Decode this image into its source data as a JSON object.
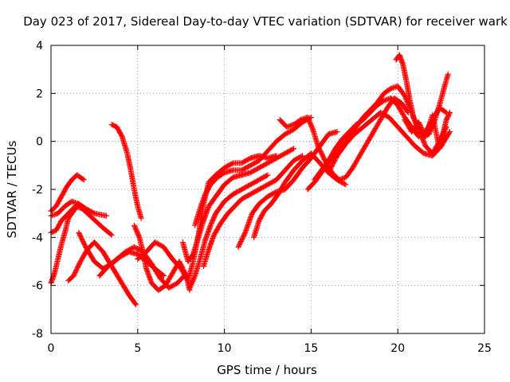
{
  "chart_data": {
    "type": "scatter",
    "title": "Day 023 of 2017, Sidereal Day-to-day VTEC variation (SDTVAR) for receiver wark",
    "xlabel": "GPS time / hours",
    "ylabel": "SDTVAR / TECUs",
    "xlim": [
      0,
      25
    ],
    "ylim": [
      -8,
      4
    ],
    "x_ticks": [
      "0",
      "5",
      "10",
      "15",
      "20",
      "25"
    ],
    "y_ticks": [
      "-8",
      "-6",
      "-4",
      "-2",
      "0",
      "2",
      "4"
    ],
    "grid": true,
    "marker": "+",
    "color": "#ff0000",
    "series": [
      {
        "points": [
          [
            0,
            -2.9
          ],
          [
            0.3,
            -2.7
          ],
          [
            0.6,
            -2.3
          ],
          [
            0.9,
            -1.9
          ],
          [
            1.2,
            -1.6
          ],
          [
            1.5,
            -1.4
          ],
          [
            1.9,
            -1.6
          ]
        ]
      },
      {
        "points": [
          [
            0,
            -3.1
          ],
          [
            0.4,
            -3.0
          ],
          [
            0.8,
            -2.7
          ],
          [
            1.2,
            -2.5
          ],
          [
            1.6,
            -2.6
          ],
          [
            2.0,
            -2.8
          ],
          [
            2.5,
            -3.0
          ],
          [
            3.2,
            -3.1
          ]
        ]
      },
      {
        "points": [
          [
            0,
            -3.8
          ],
          [
            0.3,
            -3.7
          ],
          [
            0.6,
            -3.3
          ],
          [
            1.0,
            -3.0
          ],
          [
            1.4,
            -2.7
          ],
          [
            1.8,
            -2.8
          ],
          [
            2.4,
            -3.2
          ],
          [
            3.0,
            -3.6
          ],
          [
            3.5,
            -3.9
          ]
        ]
      },
      {
        "points": [
          [
            0,
            -5.9
          ],
          [
            0.2,
            -5.5
          ],
          [
            0.4,
            -4.9
          ],
          [
            0.6,
            -4.3
          ],
          [
            0.8,
            -3.8
          ],
          [
            1.0,
            -3.2
          ],
          [
            1.3,
            -2.9
          ],
          [
            1.6,
            -2.6
          ]
        ]
      },
      {
        "points": [
          [
            1.0,
            -5.8
          ],
          [
            1.3,
            -5.6
          ],
          [
            1.7,
            -5.0
          ],
          [
            2.1,
            -4.5
          ],
          [
            2.5,
            -4.2
          ],
          [
            3.0,
            -4.6
          ],
          [
            3.5,
            -5.2
          ],
          [
            4.0,
            -5.8
          ],
          [
            4.5,
            -6.4
          ],
          [
            4.9,
            -6.8
          ]
        ]
      },
      {
        "points": [
          [
            1.6,
            -3.8
          ],
          [
            2.0,
            -4.4
          ],
          [
            2.5,
            -5.0
          ],
          [
            3.0,
            -5.3
          ],
          [
            3.5,
            -5.1
          ],
          [
            4.0,
            -4.8
          ],
          [
            4.5,
            -4.6
          ],
          [
            5.0,
            -4.7
          ],
          [
            5.5,
            -5.0
          ],
          [
            6.0,
            -5.3
          ],
          [
            6.5,
            -5.6
          ]
        ]
      },
      {
        "points": [
          [
            2.8,
            -5.6
          ],
          [
            3.3,
            -5.2
          ],
          [
            3.8,
            -4.9
          ],
          [
            4.3,
            -4.6
          ],
          [
            4.8,
            -4.4
          ],
          [
            5.3,
            -4.6
          ],
          [
            5.8,
            -5.1
          ],
          [
            6.3,
            -5.7
          ],
          [
            6.8,
            -6.1
          ],
          [
            7.3,
            -5.9
          ],
          [
            7.8,
            -5.5
          ]
        ]
      },
      {
        "points": [
          [
            3.5,
            0.7
          ],
          [
            3.8,
            0.6
          ],
          [
            4.1,
            0.2
          ],
          [
            4.4,
            -0.5
          ],
          [
            4.6,
            -1.2
          ],
          [
            4.8,
            -2.0
          ],
          [
            5.0,
            -2.7
          ],
          [
            5.2,
            -3.2
          ]
        ]
      },
      {
        "points": [
          [
            4.8,
            -3.5
          ],
          [
            5.1,
            -4.0
          ],
          [
            5.3,
            -4.6
          ],
          [
            5.5,
            -5.3
          ],
          [
            5.8,
            -5.9
          ],
          [
            6.2,
            -6.2
          ],
          [
            6.6,
            -6.0
          ],
          [
            7.0,
            -5.5
          ],
          [
            7.4,
            -5.0
          ],
          [
            7.8,
            -5.6
          ],
          [
            8.0,
            -6.2
          ]
        ]
      },
      {
        "points": [
          [
            5.0,
            -4.9
          ],
          [
            5.5,
            -4.6
          ],
          [
            6.0,
            -4.2
          ],
          [
            6.5,
            -4.4
          ],
          [
            7.0,
            -4.9
          ],
          [
            7.5,
            -5.3
          ],
          [
            7.9,
            -5.8
          ],
          [
            8.2,
            -5.0
          ],
          [
            8.5,
            -3.9
          ],
          [
            8.8,
            -2.6
          ],
          [
            9.1,
            -1.7
          ],
          [
            9.5,
            -1.4
          ],
          [
            10.0,
            -1.1
          ],
          [
            10.5,
            -0.9
          ],
          [
            11.0,
            -0.9
          ],
          [
            11.5,
            -0.7
          ],
          [
            12.0,
            -0.6
          ],
          [
            12.5,
            -0.7
          ],
          [
            13.0,
            -0.6
          ]
        ]
      },
      {
        "points": [
          [
            7.6,
            -4.2
          ],
          [
            7.9,
            -5.0
          ],
          [
            8.2,
            -4.7
          ],
          [
            8.5,
            -4.0
          ],
          [
            8.8,
            -3.3
          ],
          [
            9.1,
            -2.7
          ],
          [
            9.5,
            -2.3
          ],
          [
            10.0,
            -1.8
          ],
          [
            10.5,
            -1.5
          ],
          [
            11.0,
            -1.4
          ],
          [
            11.5,
            -1.3
          ],
          [
            12.0,
            -1.1
          ],
          [
            12.5,
            -0.9
          ],
          [
            13.0,
            -0.7
          ],
          [
            13.5,
            -0.5
          ],
          [
            14.0,
            -0.3
          ]
        ]
      },
      {
        "points": [
          [
            8.0,
            -6.1
          ],
          [
            8.3,
            -5.6
          ],
          [
            8.6,
            -4.9
          ],
          [
            8.9,
            -4.1
          ],
          [
            9.2,
            -3.5
          ],
          [
            9.5,
            -3.0
          ],
          [
            10.0,
            -2.5
          ],
          [
            10.5,
            -2.2
          ],
          [
            11.0,
            -2.0
          ],
          [
            11.5,
            -1.8
          ],
          [
            12.0,
            -1.6
          ],
          [
            12.5,
            -1.4
          ]
        ]
      },
      {
        "points": [
          [
            8.3,
            -3.5
          ],
          [
            8.6,
            -2.8
          ],
          [
            8.9,
            -2.2
          ],
          [
            9.2,
            -1.8
          ],
          [
            9.6,
            -1.5
          ],
          [
            10.0,
            -1.3
          ],
          [
            10.5,
            -1.2
          ],
          [
            11.0,
            -1.2
          ],
          [
            11.5,
            -1.0
          ],
          [
            12.0,
            -0.8
          ],
          [
            12.5,
            -0.4
          ],
          [
            13.0,
            0.0
          ],
          [
            13.5,
            0.3
          ],
          [
            14.0,
            0.5
          ],
          [
            14.5,
            0.8
          ],
          [
            15.0,
            1.0
          ]
        ]
      },
      {
        "points": [
          [
            8.8,
            -5.2
          ],
          [
            9.1,
            -4.5
          ],
          [
            9.4,
            -3.9
          ],
          [
            9.8,
            -3.4
          ],
          [
            10.2,
            -3.0
          ],
          [
            10.6,
            -2.7
          ],
          [
            11.0,
            -2.4
          ],
          [
            11.5,
            -2.2
          ],
          [
            12.0,
            -2.0
          ],
          [
            12.5,
            -1.8
          ],
          [
            13.0,
            -1.6
          ],
          [
            13.5,
            -1.2
          ],
          [
            14.0,
            -0.8
          ],
          [
            14.5,
            -0.6
          ]
        ]
      },
      {
        "points": [
          [
            10.8,
            -4.4
          ],
          [
            11.2,
            -3.8
          ],
          [
            11.6,
            -3.0
          ],
          [
            12.0,
            -2.6
          ],
          [
            12.5,
            -2.3
          ],
          [
            13.0,
            -2.1
          ],
          [
            13.5,
            -2.0
          ],
          [
            14.0,
            -1.6
          ],
          [
            14.5,
            -1.1
          ],
          [
            15.0,
            -0.7
          ],
          [
            15.5,
            -0.2
          ],
          [
            16.0,
            0.3
          ],
          [
            16.5,
            0.4
          ]
        ]
      },
      {
        "points": [
          [
            11.7,
            -4.0
          ],
          [
            12.0,
            -3.3
          ],
          [
            12.3,
            -2.9
          ],
          [
            12.7,
            -2.6
          ],
          [
            13.1,
            -2.2
          ],
          [
            13.5,
            -1.7
          ],
          [
            14.0,
            -1.2
          ],
          [
            14.5,
            -0.8
          ],
          [
            15.0,
            -0.5
          ],
          [
            15.5,
            -0.9
          ],
          [
            16.0,
            -1.3
          ],
          [
            16.5,
            -1.6
          ],
          [
            17.0,
            -1.8
          ]
        ]
      },
      {
        "points": [
          [
            13.2,
            0.9
          ],
          [
            13.6,
            0.6
          ],
          [
            14.0,
            0.7
          ],
          [
            14.4,
            0.9
          ],
          [
            14.8,
            1.0
          ],
          [
            15.1,
            0.5
          ],
          [
            15.4,
            -0.2
          ],
          [
            15.8,
            -0.8
          ],
          [
            16.2,
            -1.3
          ],
          [
            16.6,
            -1.6
          ],
          [
            17.0,
            -1.5
          ],
          [
            17.4,
            -1.1
          ],
          [
            17.8,
            -0.6
          ],
          [
            18.2,
            -0.1
          ],
          [
            18.6,
            0.4
          ],
          [
            19.0,
            0.9
          ],
          [
            19.4,
            1.4
          ],
          [
            19.8,
            1.8
          ],
          [
            20.2,
            1.6
          ],
          [
            20.6,
            1.2
          ]
        ]
      },
      {
        "points": [
          [
            14.8,
            -2.0
          ],
          [
            15.2,
            -1.7
          ],
          [
            15.6,
            -1.3
          ],
          [
            16.0,
            -0.9
          ],
          [
            16.4,
            -0.5
          ],
          [
            16.8,
            -0.2
          ],
          [
            17.2,
            0.2
          ],
          [
            17.6,
            0.6
          ],
          [
            18.0,
            1.0
          ],
          [
            18.4,
            1.3
          ],
          [
            18.8,
            1.6
          ],
          [
            19.2,
            2.0
          ],
          [
            19.6,
            2.2
          ],
          [
            20.0,
            2.3
          ],
          [
            20.4,
            1.9
          ],
          [
            20.8,
            1.2
          ],
          [
            21.2,
            0.5
          ],
          [
            21.6,
            -0.2
          ],
          [
            22.0,
            -0.5
          ],
          [
            22.4,
            0.0
          ],
          [
            22.8,
            0.6
          ]
        ]
      },
      {
        "points": [
          [
            15.2,
            -1.6
          ],
          [
            15.6,
            -1.2
          ],
          [
            16.0,
            -0.8
          ],
          [
            16.4,
            -0.3
          ],
          [
            16.8,
            0.1
          ],
          [
            17.2,
            0.4
          ],
          [
            17.6,
            0.7
          ],
          [
            18.0,
            0.9
          ],
          [
            18.4,
            1.2
          ],
          [
            18.8,
            1.5
          ],
          [
            19.2,
            1.7
          ],
          [
            19.6,
            1.8
          ],
          [
            20.0,
            1.5
          ],
          [
            20.4,
            1.0
          ],
          [
            20.8,
            0.6
          ],
          [
            21.2,
            0.2
          ],
          [
            21.6,
            0.4
          ],
          [
            22.0,
            0.9
          ],
          [
            22.4,
            1.4
          ],
          [
            22.8,
            1.2
          ]
        ]
      },
      {
        "points": [
          [
            16.0,
            -1.3
          ],
          [
            16.5,
            -0.6
          ],
          [
            17.0,
            -0.1
          ],
          [
            17.5,
            0.3
          ],
          [
            18.0,
            0.6
          ],
          [
            18.5,
            0.9
          ],
          [
            19.0,
            1.2
          ],
          [
            19.5,
            1.0
          ],
          [
            20.0,
            0.6
          ],
          [
            20.5,
            0.2
          ],
          [
            21.0,
            -0.2
          ],
          [
            21.5,
            -0.5
          ],
          [
            22.0,
            -0.6
          ],
          [
            22.5,
            -0.2
          ],
          [
            23.0,
            0.4
          ]
        ]
      },
      {
        "points": [
          [
            19.9,
            3.4
          ],
          [
            20.1,
            3.6
          ],
          [
            20.3,
            3.2
          ],
          [
            20.5,
            2.5
          ],
          [
            20.7,
            1.7
          ],
          [
            20.9,
            1.0
          ],
          [
            21.2,
            0.5
          ],
          [
            21.5,
            0.2
          ],
          [
            21.8,
            0.3
          ],
          [
            22.1,
            0.8
          ],
          [
            22.4,
            1.5
          ],
          [
            22.7,
            2.3
          ],
          [
            22.9,
            2.8
          ]
        ]
      },
      {
        "points": [
          [
            20.4,
            0.9
          ],
          [
            20.8,
            0.4
          ],
          [
            21.2,
            0.8
          ],
          [
            21.6,
            0.2
          ],
          [
            22.0,
            1.1
          ],
          [
            22.4,
            -0.3
          ],
          [
            22.8,
            0.9
          ],
          [
            23.0,
            1.2
          ]
        ]
      }
    ]
  }
}
